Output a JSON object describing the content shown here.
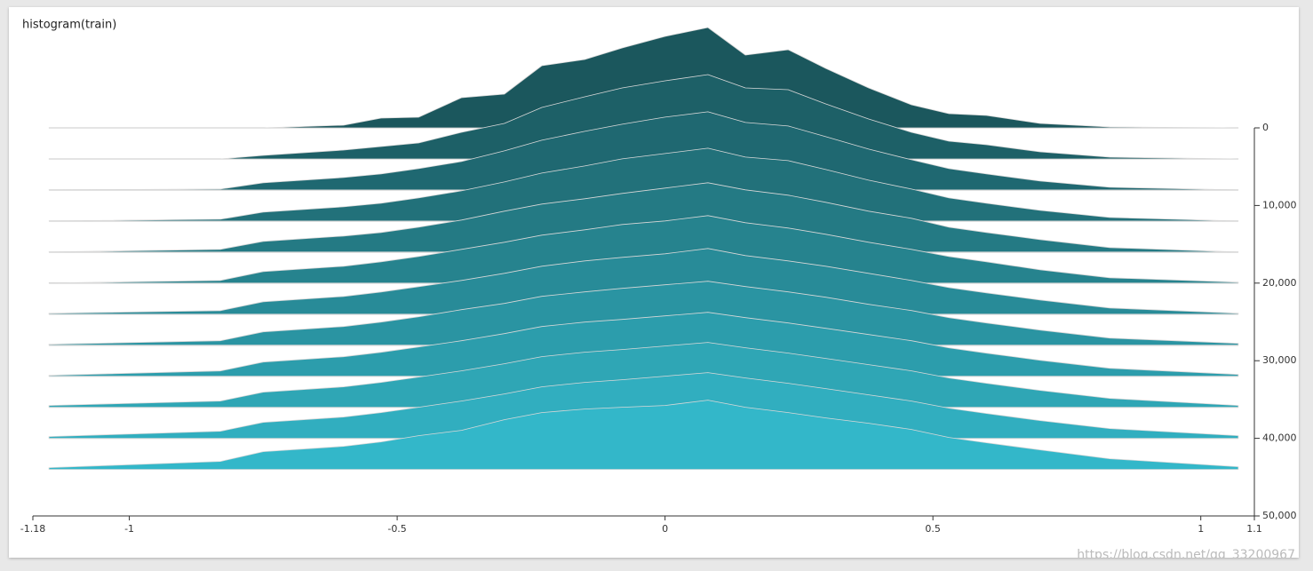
{
  "chart_data": {
    "type": "histogram-offset",
    "title": "histogram(train)",
    "watermark": "https://blog.csdn.net/qq_33200967",
    "x": [
      -1.15,
      -0.83,
      -0.75,
      -0.6,
      -0.53,
      -0.46,
      -0.38,
      -0.3,
      -0.23,
      -0.15,
      -0.08,
      0,
      0.08,
      0.15,
      0.23,
      0.3,
      0.38,
      0.46,
      0.53,
      0.6,
      0.7,
      0.83,
      1.07
    ],
    "series": [
      {
        "step": 0,
        "values": [
          0,
          0,
          0,
          3,
          11,
          12,
          34,
          38,
          70,
          77,
          90,
          103,
          113,
          82,
          88,
          67,
          45,
          26,
          16,
          14,
          5,
          1,
          0
        ]
      },
      {
        "step": 4000,
        "values": [
          0,
          0,
          4,
          10,
          14,
          18,
          30,
          40,
          58,
          70,
          80,
          88,
          95,
          80,
          78,
          62,
          45,
          30,
          20,
          16,
          8,
          2,
          0
        ]
      },
      {
        "step": 8000,
        "values": [
          0,
          1,
          8,
          14,
          18,
          24,
          32,
          44,
          56,
          66,
          74,
          82,
          88,
          76,
          72,
          60,
          46,
          34,
          24,
          18,
          10,
          3,
          0
        ]
      },
      {
        "step": 12000,
        "values": [
          0,
          2,
          10,
          16,
          20,
          26,
          34,
          44,
          54,
          62,
          70,
          76,
          82,
          72,
          68,
          58,
          46,
          36,
          26,
          20,
          12,
          4,
          0
        ]
      },
      {
        "step": 16000,
        "values": [
          0,
          3,
          12,
          18,
          22,
          28,
          36,
          46,
          54,
          60,
          66,
          72,
          78,
          70,
          64,
          56,
          46,
          38,
          28,
          22,
          14,
          5,
          0
        ]
      },
      {
        "step": 20000,
        "values": [
          0,
          3,
          13,
          19,
          24,
          30,
          38,
          46,
          54,
          60,
          66,
          70,
          76,
          68,
          62,
          55,
          46,
          38,
          30,
          24,
          15,
          6,
          1
        ]
      },
      {
        "step": 24000,
        "values": [
          1,
          4,
          14,
          20,
          25,
          31,
          38,
          46,
          54,
          60,
          64,
          68,
          74,
          66,
          60,
          54,
          46,
          38,
          30,
          24,
          16,
          7,
          1
        ]
      },
      {
        "step": 28000,
        "values": [
          1,
          5,
          15,
          21,
          26,
          32,
          40,
          47,
          55,
          60,
          64,
          68,
          72,
          66,
          60,
          54,
          46,
          39,
          31,
          25,
          17,
          8,
          2
        ]
      },
      {
        "step": 32000,
        "values": [
          1,
          6,
          16,
          22,
          27,
          33,
          40,
          48,
          56,
          61,
          64,
          68,
          72,
          66,
          60,
          54,
          47,
          40,
          32,
          26,
          18,
          9,
          2
        ]
      },
      {
        "step": 36000,
        "values": [
          2,
          7,
          17,
          23,
          28,
          34,
          41,
          49,
          57,
          62,
          65,
          69,
          73,
          67,
          61,
          55,
          48,
          41,
          33,
          27,
          19,
          10,
          2
        ]
      },
      {
        "step": 40000,
        "values": [
          2,
          8,
          18,
          24,
          29,
          35,
          42,
          50,
          58,
          63,
          66,
          70,
          74,
          68,
          62,
          56,
          49,
          42,
          34,
          28,
          20,
          11,
          3
        ]
      },
      {
        "step": 44000,
        "values": [
          2,
          9,
          20,
          26,
          31,
          38,
          44,
          56,
          64,
          68,
          70,
          72,
          78,
          70,
          64,
          58,
          52,
          45,
          36,
          30,
          22,
          12,
          3
        ]
      }
    ],
    "colors": [
      "#1b575d",
      "#33b7c9"
    ],
    "xlim": [
      -1.18,
      1.1
    ],
    "xticks": [
      -1.18,
      -1,
      -0.5,
      0,
      0.5,
      1,
      1.1
    ],
    "ylim": [
      0,
      50000
    ],
    "yticks": [
      0,
      {
        "value": 10000,
        "label": "10,000"
      },
      {
        "value": 20000,
        "label": "20,000"
      },
      {
        "value": 30000,
        "label": "30,000"
      },
      {
        "value": 40000,
        "label": "40,000"
      },
      {
        "value": 50000,
        "label": "50,000"
      }
    ]
  }
}
